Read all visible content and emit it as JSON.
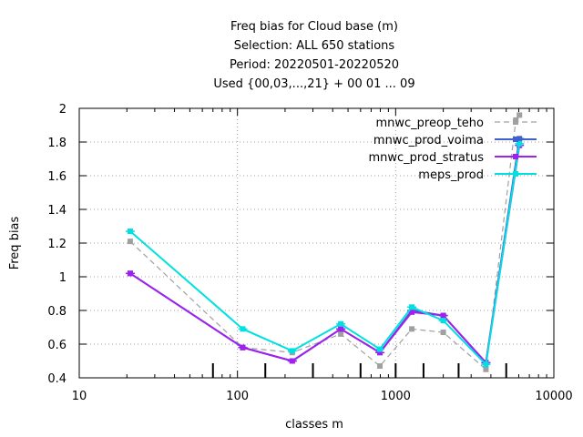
{
  "chart_data": {
    "type": "line",
    "title_lines": [
      "Freq bias  for Cloud base (m)",
      "Selection: ALL    650 stations",
      "Period: 20220501-20220520",
      "Used {00,03,...,21} + 00 01 ... 09"
    ],
    "xlabel": "classes m",
    "ylabel": "Freq bias",
    "x_scale": "log",
    "xlim": [
      10,
      10000
    ],
    "ylim": [
      0.4,
      2
    ],
    "x_ticks": [
      10,
      100,
      1000,
      10000
    ],
    "x_tick_labels": [
      "10",
      "100",
      "1000",
      "10000"
    ],
    "y_ticks": [
      0.4,
      0.6,
      0.8,
      1,
      1.2,
      1.4,
      1.6,
      1.8,
      2
    ],
    "y_tick_labels": [
      "0.4",
      "0.6",
      "0.8",
      "1",
      "1.2",
      "1.4",
      "1.6",
      "1.8",
      "2"
    ],
    "grid": true,
    "legend_position": "top-right",
    "class_boundaries": [
      70,
      150,
      300,
      600,
      1000,
      1500,
      2500,
      5000
    ],
    "series": [
      {
        "name": "mnwc_preop_teho",
        "color": "#a0a0a0",
        "dash": "dashed",
        "points": [
          [
            21,
            1.21
          ],
          [
            108,
            0.58
          ],
          [
            222,
            0.55
          ],
          [
            450,
            0.66
          ],
          [
            795,
            0.47
          ],
          [
            1265,
            0.69
          ],
          [
            2000,
            0.67
          ],
          [
            3720,
            0.45
          ],
          [
            5750,
            1.93
          ],
          [
            6060,
            1.96
          ]
        ]
      },
      {
        "name": "mnwc_prod_voima",
        "color": "#4060d0",
        "dash": "solid",
        "points": [
          [
            21,
            1.02
          ],
          [
            108,
            0.58
          ],
          [
            222,
            0.5
          ],
          [
            450,
            0.69
          ],
          [
            795,
            0.55
          ],
          [
            1265,
            0.8
          ],
          [
            2000,
            0.77
          ],
          [
            3720,
            0.49
          ],
          [
            6060,
            1.82
          ]
        ]
      },
      {
        "name": "mnwc_prod_stratus",
        "color": "#a020f0",
        "dash": "solid",
        "points": [
          [
            21,
            1.02
          ],
          [
            108,
            0.58
          ],
          [
            222,
            0.5
          ],
          [
            450,
            0.69
          ],
          [
            795,
            0.55
          ],
          [
            1265,
            0.79
          ],
          [
            2000,
            0.77
          ],
          [
            3720,
            0.49
          ],
          [
            6060,
            1.78
          ]
        ]
      },
      {
        "name": "meps_prod",
        "color": "#00e0e0",
        "dash": "solid",
        "points": [
          [
            21,
            1.27
          ],
          [
            108,
            0.69
          ],
          [
            222,
            0.56
          ],
          [
            450,
            0.72
          ],
          [
            795,
            0.57
          ],
          [
            1265,
            0.82
          ],
          [
            2000,
            0.74
          ],
          [
            3720,
            0.48
          ],
          [
            6060,
            1.79
          ]
        ]
      }
    ]
  }
}
